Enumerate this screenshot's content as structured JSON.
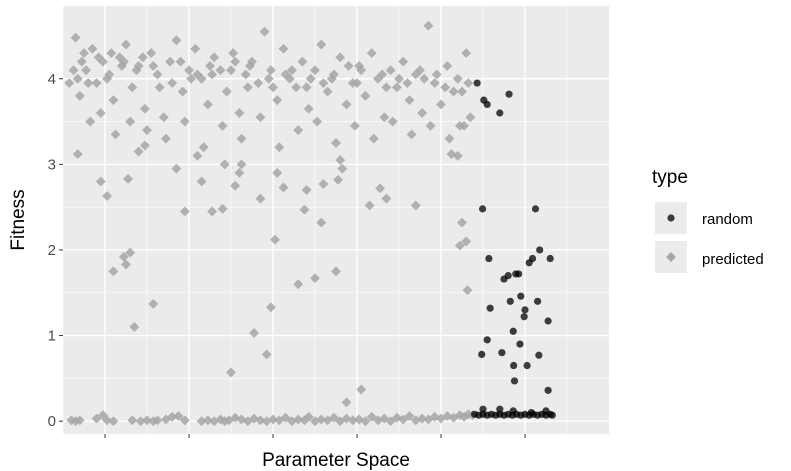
{
  "chart_data": {
    "type": "scatter",
    "title": "",
    "xlabel": "Parameter Space",
    "ylabel": "Fitness",
    "xlim": [
      0,
      1300
    ],
    "ylim": [
      -0.15,
      4.85
    ],
    "yticks": [
      0,
      1,
      2,
      3,
      4
    ],
    "grid": true,
    "legend": {
      "title": "type",
      "position": "right"
    },
    "colors": {
      "panel": "#ebebeb",
      "grid": "#ffffff",
      "random": "#000000",
      "predicted": "#a6a6a6"
    },
    "series": [
      {
        "name": "random",
        "marker": "circle",
        "points": [
          [
            986,
            3.95
          ],
          [
            1002,
            3.75
          ],
          [
            1010,
            3.7
          ],
          [
            1040,
            3.6
          ],
          [
            1062,
            3.82
          ],
          [
            999,
            2.48
          ],
          [
            1014,
            1.9
          ],
          [
            997,
            0.78
          ],
          [
            1010,
            0.95
          ],
          [
            1017,
            1.32
          ],
          [
            1045,
            0.8
          ],
          [
            1050,
            1.66
          ],
          [
            1060,
            1.7
          ],
          [
            1065,
            1.4
          ],
          [
            1072,
            1.05
          ],
          [
            1073,
            0.65
          ],
          [
            1075,
            0.47
          ],
          [
            1078,
            1.72
          ],
          [
            1085,
            1.72
          ],
          [
            1088,
            0.9
          ],
          [
            1090,
            1.46
          ],
          [
            1098,
            1.22
          ],
          [
            1100,
            1.3
          ],
          [
            1105,
            0.65
          ],
          [
            1110,
            1.85
          ],
          [
            1118,
            1.9
          ],
          [
            1125,
            2.48
          ],
          [
            1130,
            1.4
          ],
          [
            1133,
            0.77
          ],
          [
            1135,
            2.0
          ],
          [
            1160,
            1.9
          ],
          [
            1155,
            1.17
          ],
          [
            1155,
            0.36
          ],
          [
            1000,
            0.14
          ],
          [
            1040,
            0.14
          ],
          [
            1072,
            0.12
          ],
          [
            1115,
            0.1
          ],
          [
            1150,
            0.12
          ],
          [
            980,
            0.08
          ],
          [
            990,
            0.07
          ],
          [
            1000,
            0.08
          ],
          [
            1010,
            0.07
          ],
          [
            1020,
            0.08
          ],
          [
            1030,
            0.07
          ],
          [
            1040,
            0.08
          ],
          [
            1050,
            0.07
          ],
          [
            1060,
            0.08
          ],
          [
            1070,
            0.07
          ],
          [
            1080,
            0.08
          ],
          [
            1090,
            0.07
          ],
          [
            1100,
            0.08
          ],
          [
            1110,
            0.07
          ],
          [
            1120,
            0.08
          ],
          [
            1130,
            0.07
          ],
          [
            1140,
            0.08
          ],
          [
            1150,
            0.07
          ],
          [
            1160,
            0.08
          ],
          [
            1165,
            0.07
          ]
        ]
      },
      {
        "name": "predicted",
        "marker": "diamond",
        "points": [
          [
            30,
            4.48
          ],
          [
            50,
            4.3
          ],
          [
            55,
            4.1
          ],
          [
            70,
            4.35
          ],
          [
            80,
            3.95
          ],
          [
            95,
            4.2
          ],
          [
            110,
            4.05
          ],
          [
            120,
            3.75
          ],
          [
            135,
            4.25
          ],
          [
            150,
            4.4
          ],
          [
            165,
            3.9
          ],
          [
            180,
            4.15
          ],
          [
            195,
            3.65
          ],
          [
            210,
            4.3
          ],
          [
            225,
            4.05
          ],
          [
            240,
            3.55
          ],
          [
            255,
            4.2
          ],
          [
            270,
            4.45
          ],
          [
            285,
            3.85
          ],
          [
            300,
            4.1
          ],
          [
            315,
            4.35
          ],
          [
            330,
            4.0
          ],
          [
            345,
            3.7
          ],
          [
            360,
            4.25
          ],
          [
            375,
            4.1
          ],
          [
            390,
            3.85
          ],
          [
            405,
            4.3
          ],
          [
            420,
            3.6
          ],
          [
            435,
            4.05
          ],
          [
            450,
            4.2
          ],
          [
            465,
            3.95
          ],
          [
            480,
            4.55
          ],
          [
            495,
            4.1
          ],
          [
            510,
            3.75
          ],
          [
            525,
            4.35
          ],
          [
            540,
            4.0
          ],
          [
            555,
            3.9
          ],
          [
            570,
            4.2
          ],
          [
            585,
            3.65
          ],
          [
            600,
            4.1
          ],
          [
            615,
            4.4
          ],
          [
            630,
            3.85
          ],
          [
            645,
            4.05
          ],
          [
            660,
            4.25
          ],
          [
            675,
            3.7
          ],
          [
            690,
            3.95
          ],
          [
            705,
            4.15
          ],
          [
            720,
            3.8
          ],
          [
            735,
            4.3
          ],
          [
            750,
            4.0
          ],
          [
            765,
            3.55
          ],
          [
            780,
            4.1
          ],
          [
            795,
            3.9
          ],
          [
            810,
            4.2
          ],
          [
            825,
            3.75
          ],
          [
            840,
            4.05
          ],
          [
            855,
            3.6
          ],
          [
            870,
            4.62
          ],
          [
            885,
            3.95
          ],
          [
            900,
            3.7
          ],
          [
            915,
            4.15
          ],
          [
            930,
            3.85
          ],
          [
            945,
            3.45
          ],
          [
            960,
            4.3
          ],
          [
            970,
            3.55
          ],
          [
            40,
            3.8
          ],
          [
            65,
            3.5
          ],
          [
            90,
            3.6
          ],
          [
            125,
            3.35
          ],
          [
            160,
            3.5
          ],
          [
            200,
            3.4
          ],
          [
            245,
            3.3
          ],
          [
            290,
            3.5
          ],
          [
            335,
            3.2
          ],
          [
            380,
            3.45
          ],
          [
            425,
            3.3
          ],
          [
            470,
            3.55
          ],
          [
            515,
            3.2
          ],
          [
            560,
            3.4
          ],
          [
            605,
            3.5
          ],
          [
            650,
            3.25
          ],
          [
            695,
            3.45
          ],
          [
            740,
            3.3
          ],
          [
            785,
            3.5
          ],
          [
            830,
            3.35
          ],
          [
            875,
            3.45
          ],
          [
            920,
            3.3
          ],
          [
            955,
            3.45
          ],
          [
            105,
            4.0
          ],
          [
            175,
            4.1
          ],
          [
            260,
            3.95
          ],
          [
            350,
            4.15
          ],
          [
            440,
            3.9
          ],
          [
            530,
            4.05
          ],
          [
            620,
            3.95
          ],
          [
            710,
            4.1
          ],
          [
            800,
            4.0
          ],
          [
            890,
            4.05
          ],
          [
            60,
            3.95
          ],
          [
            140,
            4.15
          ],
          [
            230,
            3.9
          ],
          [
            320,
            4.05
          ],
          [
            410,
            4.2
          ],
          [
            500,
            3.9
          ],
          [
            590,
            4.0
          ],
          [
            680,
            4.15
          ],
          [
            770,
            3.9
          ],
          [
            860,
            4.0
          ],
          [
            950,
            3.85
          ],
          [
            15,
            3.95
          ],
          [
            25,
            4.1
          ],
          [
            35,
            4.0
          ],
          [
            45,
            4.2
          ],
          [
            85,
            4.25
          ],
          [
            115,
            4.3
          ],
          [
            145,
            4.2
          ],
          [
            190,
            4.25
          ],
          [
            215,
            4.15
          ],
          [
            280,
            4.2
          ],
          [
            305,
            4.0
          ],
          [
            355,
            4.05
          ],
          [
            400,
            4.1
          ],
          [
            445,
            4.15
          ],
          [
            490,
            4.0
          ],
          [
            545,
            4.1
          ],
          [
            580,
            3.9
          ],
          [
            640,
            4.0
          ],
          [
            700,
            3.95
          ],
          [
            760,
            4.05
          ],
          [
            820,
            3.95
          ],
          [
            850,
            4.1
          ],
          [
            910,
            3.9
          ],
          [
            940,
            4.0
          ],
          [
            965,
            3.95
          ],
          [
            35,
            3.12
          ],
          [
            90,
            2.8
          ],
          [
            105,
            2.63
          ],
          [
            120,
            1.75
          ],
          [
            145,
            1.92
          ],
          [
            150,
            1.83
          ],
          [
            160,
            1.97
          ],
          [
            155,
            2.83
          ],
          [
            170,
            1.1
          ],
          [
            180,
            3.15
          ],
          [
            195,
            3.22
          ],
          [
            215,
            1.37
          ],
          [
            270,
            2.95
          ],
          [
            290,
            2.45
          ],
          [
            320,
            3.1
          ],
          [
            330,
            2.8
          ],
          [
            355,
            2.45
          ],
          [
            380,
            2.48
          ],
          [
            385,
            3.0
          ],
          [
            400,
            0.57
          ],
          [
            410,
            2.75
          ],
          [
            420,
            2.9
          ],
          [
            425,
            3.0
          ],
          [
            455,
            1.03
          ],
          [
            470,
            2.6
          ],
          [
            485,
            0.78
          ],
          [
            495,
            1.33
          ],
          [
            505,
            2.12
          ],
          [
            510,
            2.9
          ],
          [
            525,
            2.73
          ],
          [
            560,
            1.6
          ],
          [
            575,
            2.47
          ],
          [
            580,
            2.7
          ],
          [
            600,
            1.67
          ],
          [
            615,
            2.32
          ],
          [
            620,
            2.77
          ],
          [
            650,
            1.75
          ],
          [
            655,
            2.82
          ],
          [
            665,
            2.95
          ],
          [
            675,
            0.22
          ],
          [
            710,
            0.37
          ],
          [
            730,
            2.52
          ],
          [
            755,
            2.72
          ],
          [
            770,
            2.6
          ],
          [
            840,
            2.52
          ],
          [
            945,
            2.05
          ],
          [
            950,
            2.32
          ],
          [
            960,
            2.1
          ],
          [
            963,
            1.53
          ],
          [
            940,
            3.1
          ],
          [
            925,
            3.12
          ],
          [
            660,
            3.05
          ],
          [
            20,
            0.01
          ],
          [
            30,
            0.0
          ],
          [
            40,
            0.01
          ],
          [
            80,
            0.03
          ],
          [
            95,
            0.07
          ],
          [
            105,
            0.01
          ],
          [
            120,
            0.0
          ],
          [
            165,
            0.01
          ],
          [
            185,
            0.0
          ],
          [
            200,
            0.01
          ],
          [
            215,
            0.0
          ],
          [
            225,
            0.01
          ],
          [
            245,
            0.02
          ],
          [
            260,
            0.05
          ],
          [
            275,
            0.06
          ],
          [
            290,
            0.01
          ],
          [
            330,
            0.0
          ],
          [
            345,
            0.01
          ],
          [
            360,
            0.0
          ],
          [
            375,
            0.02
          ],
          [
            385,
            0.0
          ],
          [
            395,
            0.01
          ],
          [
            410,
            0.04
          ],
          [
            425,
            0.02
          ],
          [
            440,
            0.0
          ],
          [
            455,
            0.03
          ],
          [
            470,
            0.01
          ],
          [
            485,
            0.0
          ],
          [
            500,
            0.02
          ],
          [
            515,
            0.01
          ],
          [
            530,
            0.04
          ],
          [
            545,
            0.0
          ],
          [
            560,
            0.02
          ],
          [
            575,
            0.01
          ],
          [
            585,
            0.05
          ],
          [
            600,
            0.0
          ],
          [
            615,
            0.02
          ],
          [
            630,
            0.01
          ],
          [
            645,
            0.04
          ],
          [
            660,
            0.0
          ],
          [
            675,
            0.03
          ],
          [
            690,
            0.01
          ],
          [
            705,
            0.02
          ],
          [
            720,
            0.0
          ],
          [
            735,
            0.05
          ],
          [
            750,
            0.01
          ],
          [
            765,
            0.03
          ],
          [
            780,
            0.0
          ],
          [
            795,
            0.04
          ],
          [
            810,
            0.02
          ],
          [
            825,
            0.06
          ],
          [
            840,
            0.01
          ],
          [
            855,
            0.03
          ],
          [
            870,
            0.02
          ],
          [
            885,
            0.05
          ],
          [
            900,
            0.03
          ],
          [
            915,
            0.06
          ],
          [
            930,
            0.04
          ],
          [
            945,
            0.07
          ],
          [
            955,
            0.05
          ],
          [
            965,
            0.08
          ],
          [
            975,
            0.07
          ]
        ]
      }
    ]
  }
}
